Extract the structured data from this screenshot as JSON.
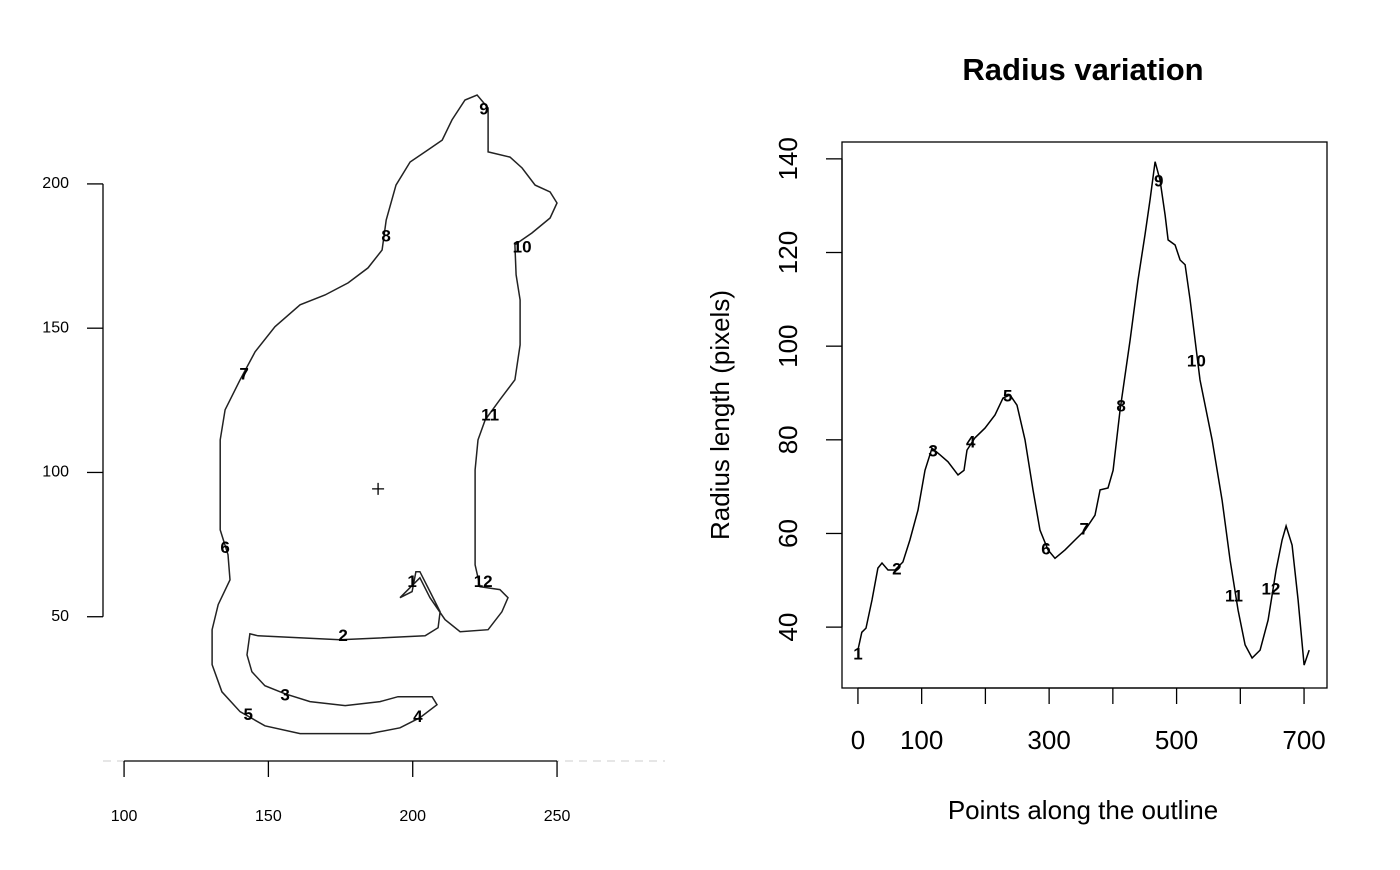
{
  "chart_data": [
    {
      "type": "outline",
      "x": [
        195.6,
        199.8,
        201.1,
        202.5,
        206.0,
        209.5,
        208.8,
        204.3,
        174.8,
        146.4,
        143.6,
        142.6,
        144.3,
        148.8,
        155.8,
        164.4,
        176.6,
        188.7,
        194.9,
        206.7,
        208.4,
        202.5,
        195.6,
        185.2,
        161.0,
        148.8,
        140.2,
        133.9,
        130.5,
        130.5,
        132.6,
        136.7,
        136.0,
        133.3,
        133.3,
        135.0,
        140.2,
        145.4,
        152.3,
        161.0,
        169.6,
        177.6,
        184.5,
        189.4,
        190.8,
        194.2,
        199.1,
        205.3,
        210.2,
        213.6,
        218.1,
        222.3,
        226.1,
        226.1,
        233.7,
        237.9,
        242.4,
        247.6,
        250.0,
        247.6,
        241.3,
        235.4,
        235.8,
        237.2,
        237.2,
        235.4,
        230.2,
        225.1,
        222.6,
        221.6,
        221.6,
        223.3,
        230.2,
        233.0,
        230.9,
        226.1,
        216.4,
        211.2,
        206.0,
        202.5
      ],
      "y": [
        56.6,
        58.7,
        65.6,
        65.6,
        58.7,
        51.7,
        46.2,
        43.4,
        42.0,
        43.4,
        44.1,
        36.8,
        30.9,
        26.1,
        23.3,
        20.6,
        19.2,
        20.6,
        22.3,
        22.3,
        19.5,
        15.0,
        11.5,
        9.5,
        9.5,
        12.2,
        17.1,
        24.0,
        33.4,
        45.5,
        54.2,
        62.8,
        71.5,
        80.1,
        111.3,
        121.7,
        132.1,
        141.8,
        150.5,
        158.1,
        161.5,
        165.7,
        170.9,
        177.1,
        187.5,
        199.6,
        207.6,
        211.8,
        215.2,
        222.2,
        229.1,
        230.8,
        226.3,
        211.1,
        209.3,
        205.5,
        199.6,
        197.2,
        193.4,
        188.2,
        183.0,
        178.9,
        168.5,
        159.8,
        144.2,
        132.1,
        125.2,
        118.2,
        111.3,
        100.9,
        68.0,
        60.4,
        59.4,
        56.6,
        51.7,
        45.5,
        44.8,
        49.0,
        56.6,
        63.5
      ],
      "labels": {
        "x": [
          199.8,
          175.9,
          155.8,
          201.8,
          143.0,
          135.0,
          141.6,
          190.8,
          224.7,
          237.9,
          226.8,
          224.4
        ],
        "y": [
          61.8,
          43.1,
          22.6,
          15.0,
          15.7,
          73.6,
          133.8,
          181.6,
          225.6,
          177.8,
          119.6,
          61.8
        ],
        "text": [
          "1",
          "2",
          "3",
          "4",
          "5",
          "6",
          "7",
          "8",
          "9",
          "10",
          "11",
          "12"
        ]
      },
      "center": [
        188.0,
        94.3
      ],
      "color": "#222222",
      "xlim": [
        92.7,
        287.4
      ],
      "ylim": [
        0,
        240
      ],
      "xticks": [
        100,
        150,
        200,
        250
      ],
      "yticks": [
        50,
        100,
        150,
        200
      ]
    },
    {
      "type": "line",
      "title": "Radius variation",
      "xlabel": "Points along the outline",
      "ylabel": "Radius length (pixels)",
      "x": [
        0,
        6,
        12.6,
        22,
        31.4,
        37.7,
        47.1,
        58.1,
        70.6,
        81.6,
        94.2,
        105.2,
        116.2,
        128.7,
        141.3,
        157.0,
        166.4,
        171.1,
        183.6,
        199.3,
        215.0,
        227.6,
        238.6,
        249.6,
        262.1,
        274.7,
        285.7,
        298.2,
        309.2,
        324.9,
        340.6,
        356.3,
        372.0,
        379.9,
        392.4,
        400.3,
        411.3,
        427.0,
        439.5,
        450.5,
        458.3,
        466.2,
        474.0,
        481.9,
        486.6,
        497.6,
        505.5,
        513.3,
        521.2,
        536.8,
        555.7,
        571.4,
        584.0,
        596.5,
        607.5,
        618.5,
        631.0,
        643.6,
        656.2,
        665.6,
        671.8,
        681.3,
        690.7,
        700.1,
        708
      ],
      "y": [
        35.1,
        38.9,
        39.8,
        45.8,
        52.6,
        53.7,
        52.2,
        52.2,
        53.9,
        58.6,
        65.0,
        73.5,
        78.2,
        76.8,
        75.3,
        72.5,
        73.5,
        77.8,
        80.4,
        82.5,
        85.3,
        88.9,
        89.6,
        87.4,
        80.0,
        69.3,
        60.7,
        56.5,
        54.7,
        56.5,
        58.6,
        60.7,
        63.9,
        69.3,
        69.7,
        73.5,
        86.4,
        101.3,
        114.1,
        123.8,
        131.2,
        139.4,
        135.5,
        128.0,
        122.7,
        121.6,
        118.4,
        117.4,
        109.9,
        92.8,
        80.0,
        67.1,
        54.3,
        43.6,
        36.2,
        33.4,
        35.1,
        41.5,
        52.2,
        58.6,
        61.6,
        57.5,
        45.8,
        31.9,
        35.1
      ],
      "labels": {
        "x": [
          0,
          61,
          118,
          177,
          235,
          295,
          355,
          413,
          472,
          531,
          590,
          648
        ],
        "y": [
          34.0,
          52.2,
          77.4,
          79.3,
          89.1,
          56.5,
          60.7,
          87.0,
          135.1,
          96.6,
          46.4,
          47.9
        ],
        "text": [
          "1",
          "2",
          "3",
          "4",
          "5",
          "6",
          "7",
          "8",
          "9",
          "10",
          "11",
          "12"
        ]
      },
      "color": "#000000",
      "xlim": [
        -25,
        736
      ],
      "ylim": [
        27,
        143.6
      ],
      "xticks": [
        0,
        100,
        {
          "value": 200,
          "label": null
        },
        300,
        {
          "value": 400,
          "label": null
        },
        500,
        {
          "value": 600,
          "label": null
        },
        700
      ],
      "yticks": [
        40,
        60,
        80,
        100,
        120,
        140
      ]
    }
  ]
}
